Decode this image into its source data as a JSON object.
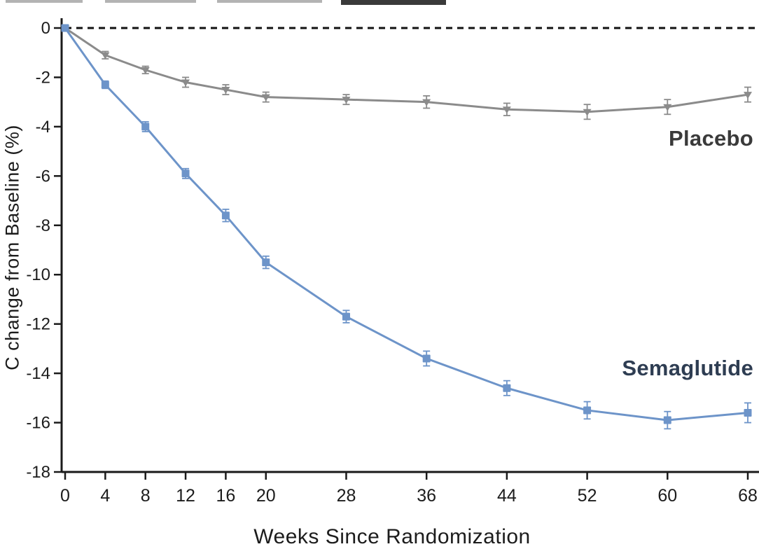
{
  "chart_data": {
    "type": "line",
    "title": "",
    "xlabel": "Weeks Since Randomization",
    "ylabel": "C change from Baseline (%)",
    "xlim": [
      0,
      68
    ],
    "ylim": [
      -18,
      0
    ],
    "grid": false,
    "x_ticks": [
      0,
      4,
      8,
      12,
      16,
      20,
      28,
      36,
      44,
      52,
      60,
      68
    ],
    "y_ticks": [
      0,
      -2,
      -4,
      -6,
      -8,
      -10,
      -12,
      -14,
      -16,
      -18
    ],
    "zero_reference_line": {
      "value": 0,
      "style": "dashed",
      "color": "#111111"
    },
    "x": [
      0,
      4,
      8,
      12,
      16,
      20,
      28,
      36,
      44,
      52,
      60,
      68
    ],
    "series": [
      {
        "name": "Placebo",
        "color": "#8b8b8b",
        "label_color": "#3a3a3a",
        "marker": "triangle-down",
        "values": [
          0,
          -1.1,
          -1.7,
          -2.2,
          -2.5,
          -2.8,
          -2.9,
          -3.0,
          -3.3,
          -3.4,
          -3.2,
          -2.7
        ],
        "errors": [
          0.1,
          0.15,
          0.15,
          0.2,
          0.2,
          0.2,
          0.2,
          0.25,
          0.25,
          0.3,
          0.3,
          0.3
        ]
      },
      {
        "name": "Semaglutide",
        "color": "#6d94c9",
        "label_color": "#2e3d52",
        "marker": "square",
        "values": [
          0,
          -2.3,
          -4.0,
          -5.9,
          -7.6,
          -9.5,
          -11.7,
          -13.4,
          -14.6,
          -15.5,
          -15.9,
          -15.6
        ],
        "errors": [
          0.1,
          0.15,
          0.2,
          0.2,
          0.25,
          0.25,
          0.25,
          0.3,
          0.3,
          0.35,
          0.35,
          0.4
        ]
      }
    ],
    "legend_position": "inline-labels"
  },
  "labels": {
    "x_axis": "Weeks Since Randomization",
    "y_axis": "C change from Baseline (%)",
    "placebo": "Placebo",
    "semaglutide": "Semaglutide"
  },
  "colors": {
    "axis": "#1a1a1a",
    "background": "#ffffff",
    "placebo_line": "#8b8b8b",
    "semaglutide_line": "#6d94c9",
    "placebo_label": "#3a3a3a",
    "semaglutide_label": "#2e3d52"
  }
}
